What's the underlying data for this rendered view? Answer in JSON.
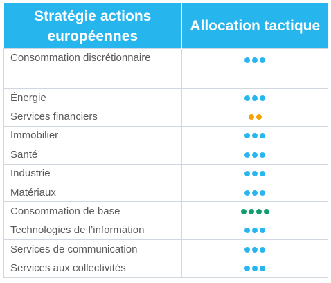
{
  "header": {
    "col1": "Stratégie actions européennes",
    "col2": "Allocation tactique"
  },
  "colors": {
    "header_bg": "#27b5ee",
    "neutral": "#29b6f0",
    "underweight": "#f5a300",
    "overweight": "#0f9d6e"
  },
  "rows": [
    {
      "sector": "Consommation discrétionnaire",
      "dots": 3,
      "rating": "neutral"
    },
    {
      "sector": "Énergie",
      "dots": 3,
      "rating": "neutral"
    },
    {
      "sector": "Services financiers",
      "dots": 2,
      "rating": "underweight"
    },
    {
      "sector": "Immobilier",
      "dots": 3,
      "rating": "neutral"
    },
    {
      "sector": "Santé",
      "dots": 3,
      "rating": "neutral"
    },
    {
      "sector": "Industrie",
      "dots": 3,
      "rating": "neutral"
    },
    {
      "sector": "Matériaux",
      "dots": 3,
      "rating": "neutral"
    },
    {
      "sector": "Consommation de base",
      "dots": 4,
      "rating": "overweight"
    },
    {
      "sector": "Technologies de l’information",
      "dots": 3,
      "rating": "neutral"
    },
    {
      "sector": "Services de communication",
      "dots": 3,
      "rating": "neutral"
    },
    {
      "sector": "Services aux collectivités",
      "dots": 3,
      "rating": "neutral"
    }
  ]
}
